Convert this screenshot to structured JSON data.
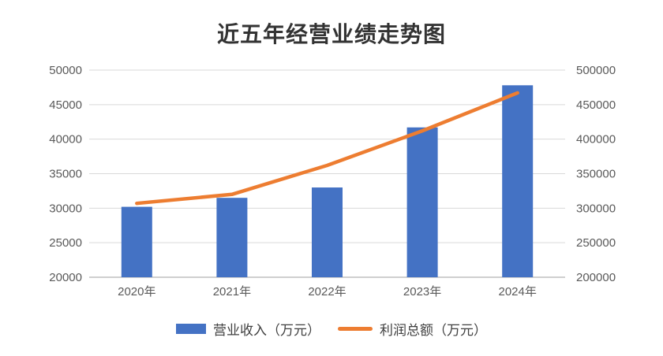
{
  "chart_data": {
    "type": "combo-bar-line",
    "title": "近五年经营业绩走势图",
    "categories": [
      "2020年",
      "2021年",
      "2022年",
      "2023年",
      "2024年"
    ],
    "series": [
      {
        "name": "营业收入（万元）",
        "type": "bar",
        "axis": "left",
        "color": "#4472C4",
        "values": [
          30200,
          31500,
          33000,
          41700,
          47800
        ]
      },
      {
        "name": "利润总额（万元）",
        "type": "line",
        "axis": "right",
        "color": "#ED7D31",
        "values": [
          307000,
          320000,
          362000,
          412000,
          467000
        ]
      }
    ],
    "left_axis": {
      "min": 20000,
      "max": 50000,
      "step": 5000,
      "tick_labels": [
        "20000",
        "25000",
        "30000",
        "35000",
        "40000",
        "45000",
        "50000"
      ]
    },
    "right_axis": {
      "min": 200000,
      "max": 500000,
      "step": 50000,
      "tick_labels": [
        "200000",
        "250000",
        "300000",
        "350000",
        "400000",
        "450000",
        "500000"
      ]
    },
    "grid": true,
    "legend_position": "bottom"
  },
  "colors": {
    "bar_fill": "#4472C4",
    "line_stroke": "#ED7D31",
    "axis_text": "#595959",
    "gridline": "#D9D9D9",
    "axis_line": "#BFBFBF",
    "title_text": "#333333",
    "legend_text": "#404040",
    "background": "#FFFFFF"
  }
}
